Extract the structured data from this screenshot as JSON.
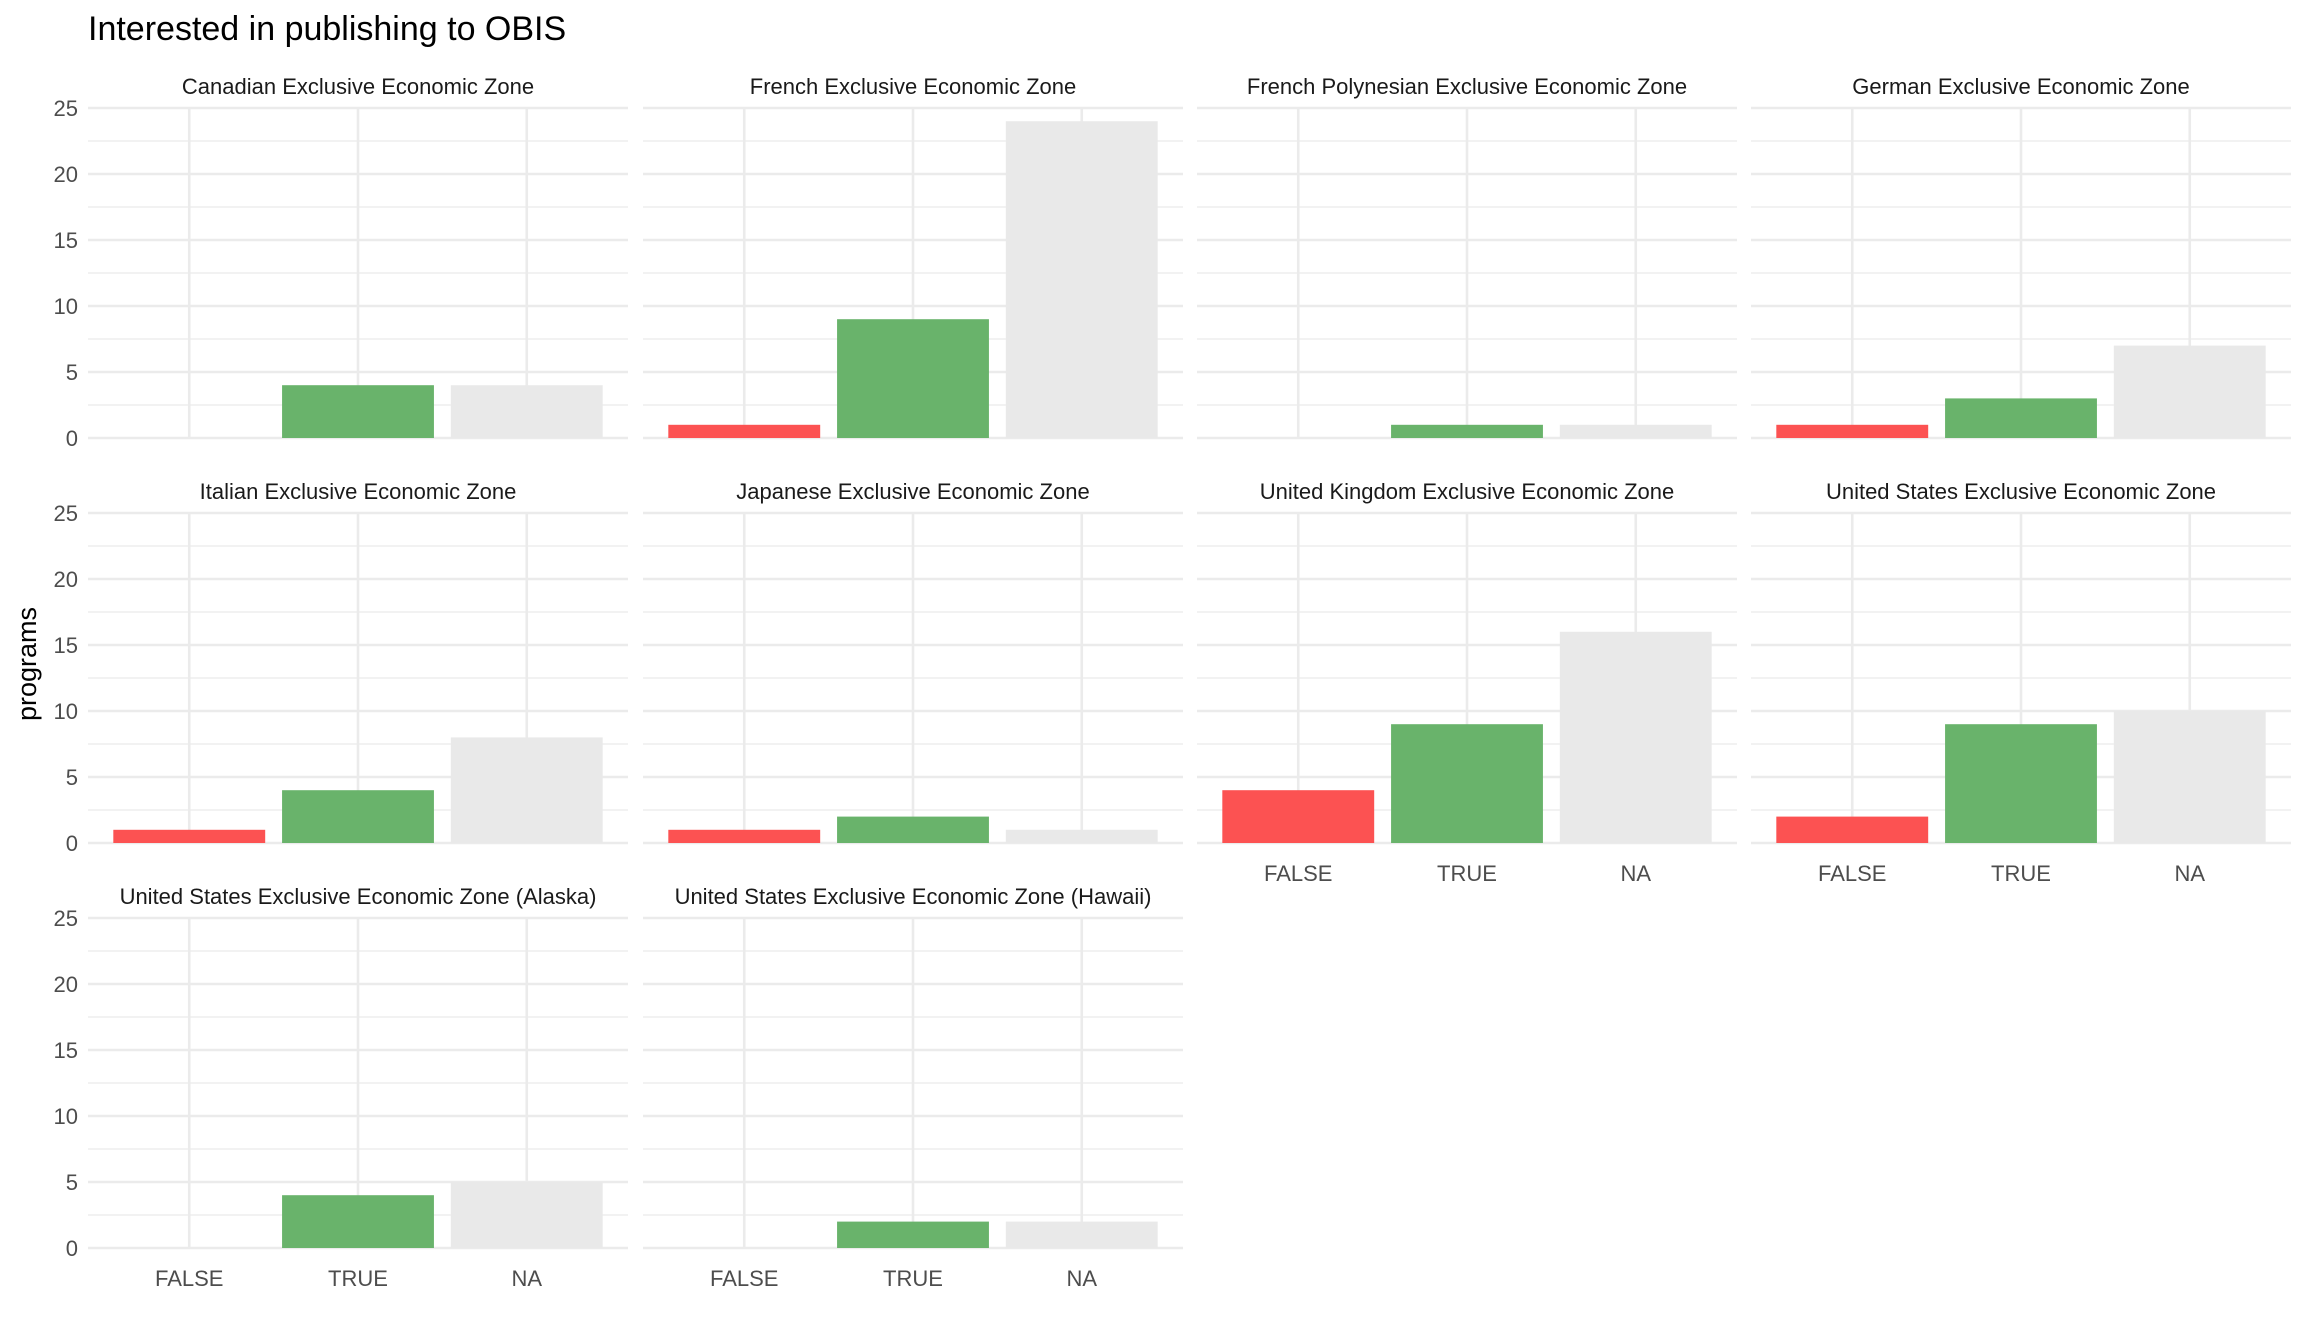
{
  "chart_data": {
    "type": "bar",
    "title": "Interested in publishing to OBIS",
    "ylabel": "programs",
    "xlabel": "",
    "categories": [
      "FALSE",
      "TRUE",
      "NA"
    ],
    "ylim": [
      0,
      25
    ],
    "yticks": [
      0,
      5,
      10,
      15,
      20,
      25
    ],
    "grid": true,
    "colors": {
      "FALSE": "#fc5252",
      "TRUE": "#69b36b",
      "NA": "#e9e9e9"
    },
    "facets": [
      {
        "title": "Canadian Exclusive Economic Zone",
        "values": [
          0,
          4,
          4
        ]
      },
      {
        "title": "French Exclusive Economic Zone",
        "values": [
          1,
          9,
          24
        ]
      },
      {
        "title": "French Polynesian Exclusive Economic Zone",
        "values": [
          0,
          1,
          1
        ]
      },
      {
        "title": "German Exclusive Economic Zone",
        "values": [
          1,
          3,
          7
        ]
      },
      {
        "title": "Italian Exclusive Economic Zone",
        "values": [
          1,
          4,
          8
        ]
      },
      {
        "title": "Japanese Exclusive Economic Zone",
        "values": [
          1,
          2,
          1
        ]
      },
      {
        "title": "United Kingdom Exclusive Economic Zone",
        "values": [
          4,
          9,
          16
        ]
      },
      {
        "title": "United States Exclusive Economic Zone",
        "values": [
          2,
          9,
          10
        ]
      },
      {
        "title": "United States Exclusive Economic Zone (Alaska)",
        "values": [
          0,
          4,
          5
        ]
      },
      {
        "title": "United States Exclusive Economic Zone (Hawaii)",
        "values": [
          0,
          2,
          2
        ]
      }
    ]
  }
}
